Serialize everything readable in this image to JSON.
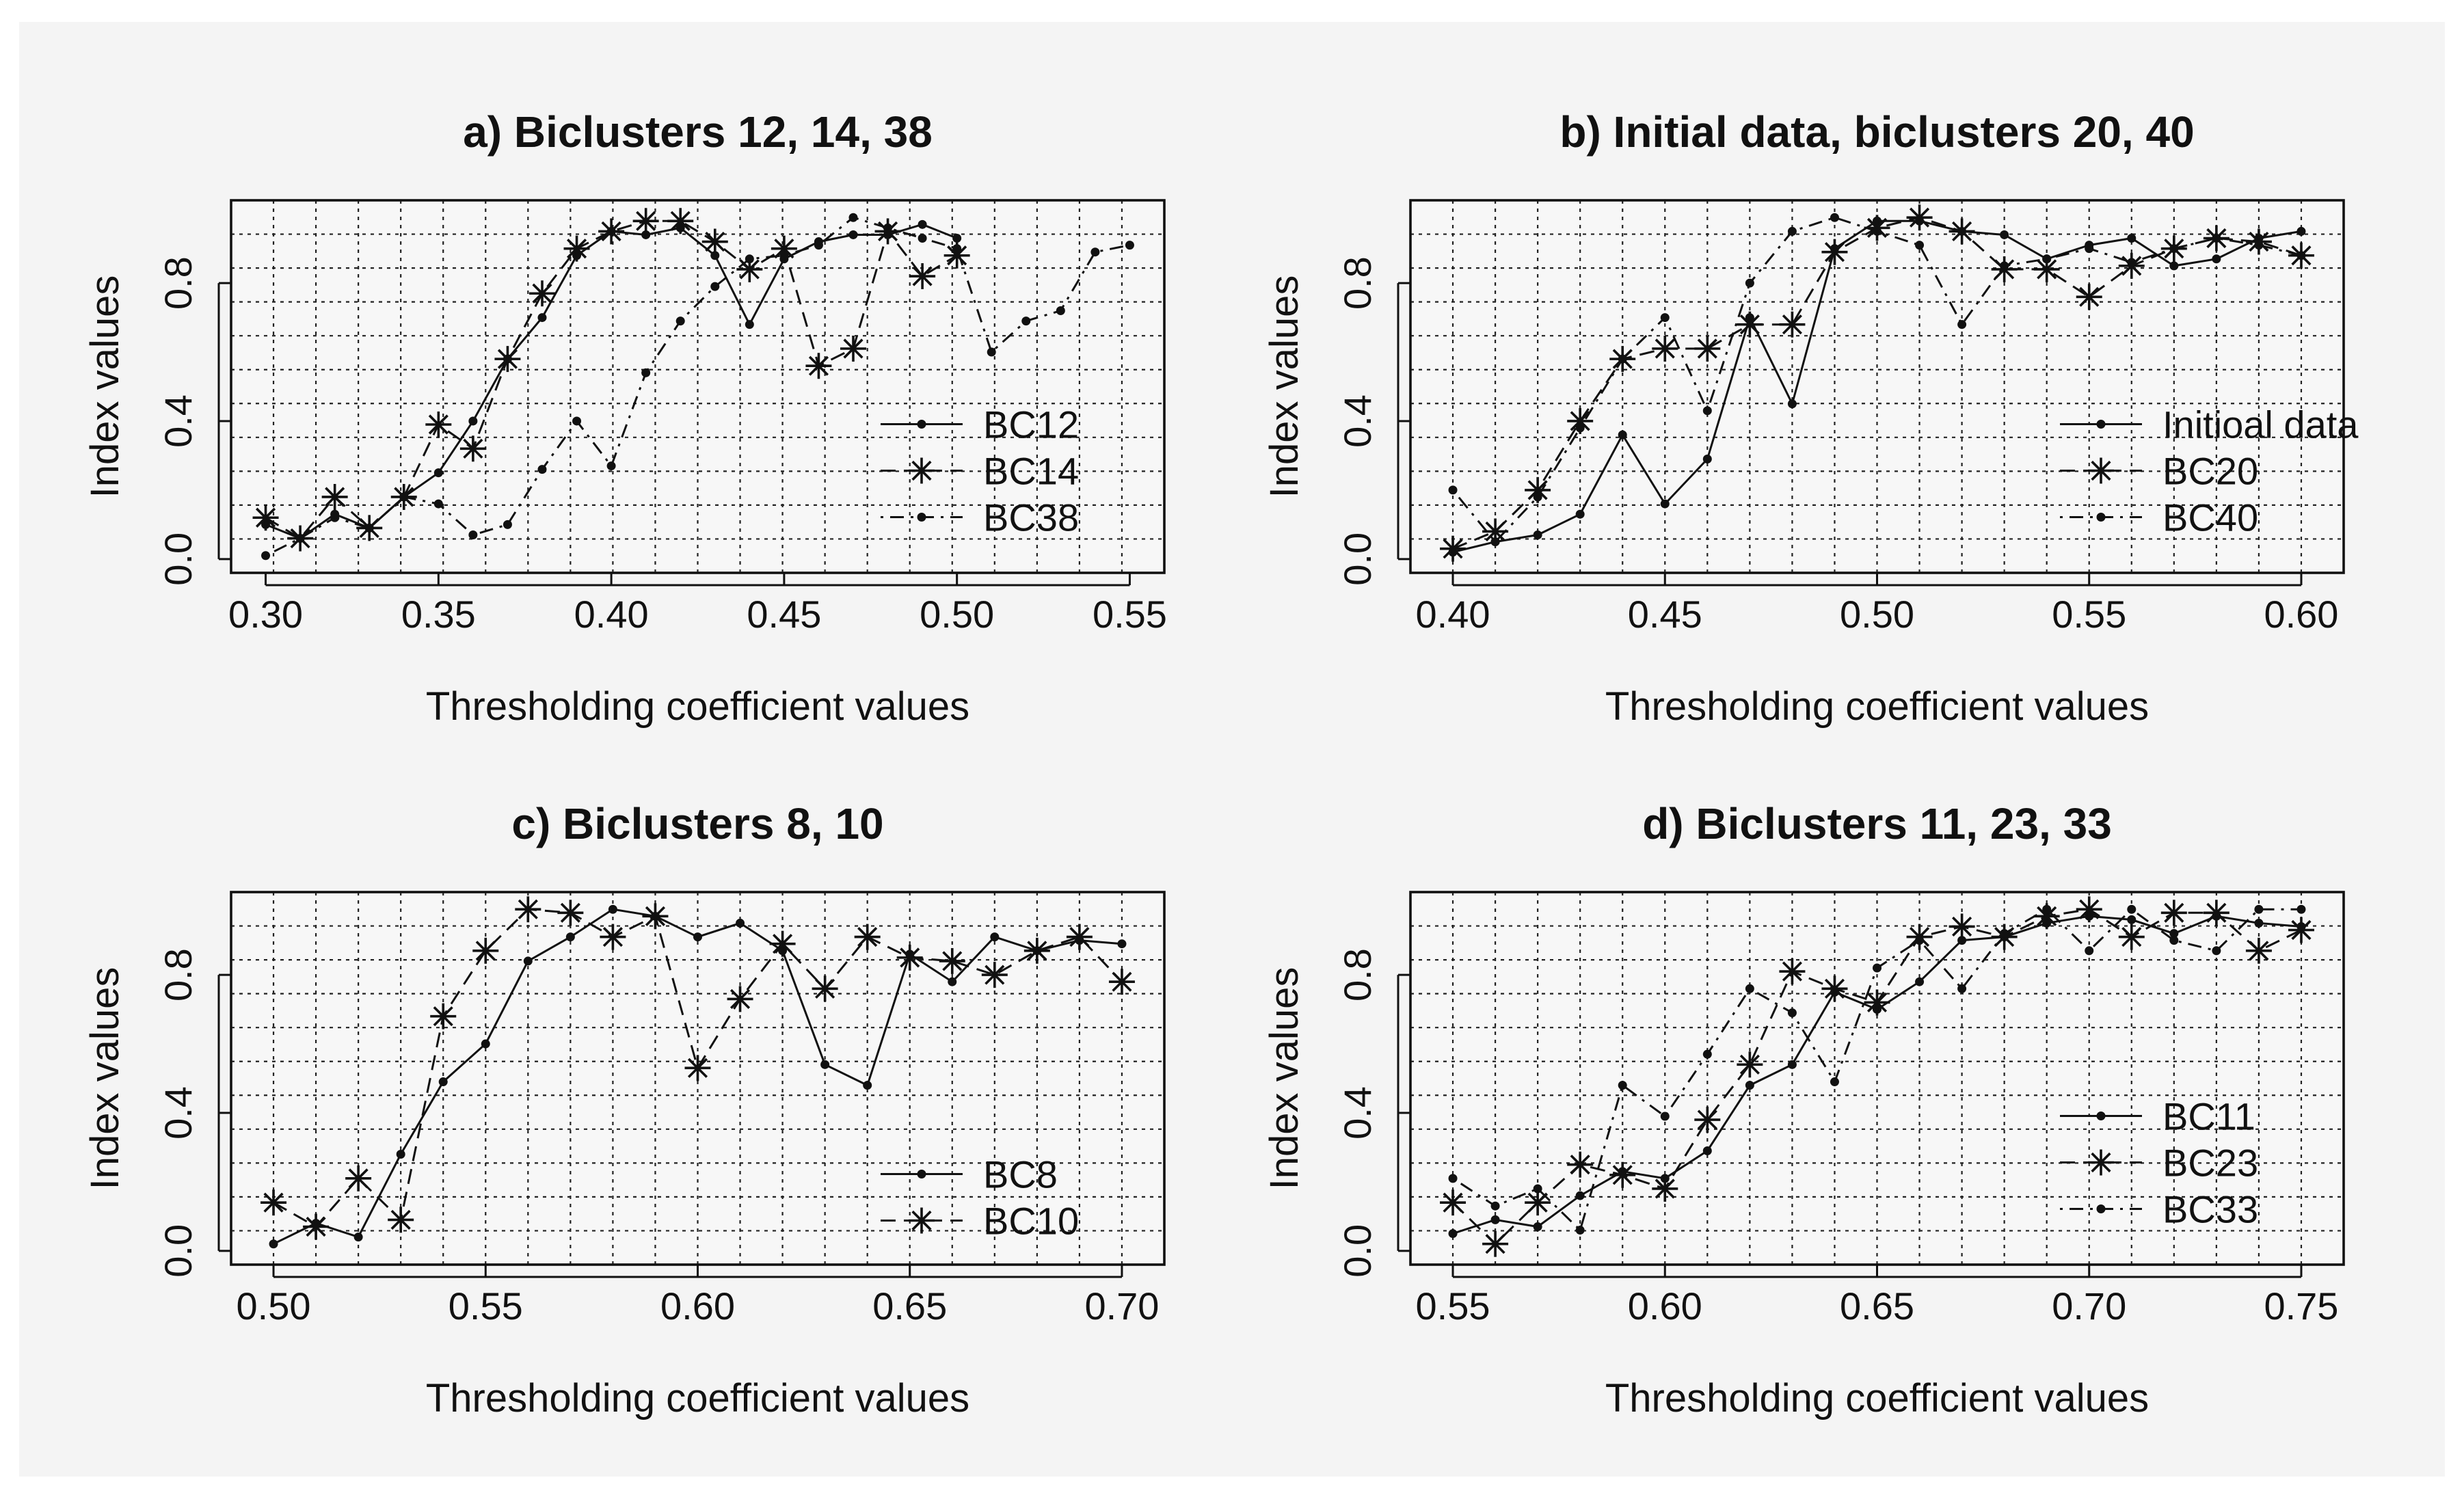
{
  "chart_data": [
    {
      "type": "line",
      "title": "a) Biclusters 12, 14, 38",
      "xlabel": "Thresholding coefficient values",
      "ylabel": "Index values",
      "xlim": [
        0.29,
        0.56
      ],
      "ylim": [
        -0.04,
        1.04
      ],
      "x_ticks": [
        "0.30",
        "0.35",
        "0.40",
        "0.45",
        "0.50",
        "0.55"
      ],
      "y_ticks": [
        "0.0",
        "0.4",
        "0.8"
      ],
      "grid": true,
      "legend_position": "right",
      "series": [
        {
          "name": "BC12",
          "marker": "dot",
          "line": "solid",
          "x": [
            0.3,
            0.31,
            0.32,
            0.33,
            0.34,
            0.35,
            0.36,
            0.37,
            0.38,
            0.39,
            0.4,
            0.41,
            0.42,
            0.43,
            0.44,
            0.45,
            0.46,
            0.47,
            0.48,
            0.49,
            0.5
          ],
          "y": [
            0.1,
            0.06,
            0.13,
            0.09,
            0.18,
            0.25,
            0.4,
            0.58,
            0.7,
            0.88,
            0.95,
            0.94,
            0.96,
            0.88,
            0.68,
            0.87,
            0.92,
            0.94,
            0.94,
            0.97,
            0.93
          ]
        },
        {
          "name": "BC14",
          "marker": "star",
          "line": "dashed",
          "x": [
            0.3,
            0.31,
            0.32,
            0.33,
            0.34,
            0.35,
            0.36,
            0.37,
            0.38,
            0.39,
            0.4,
            0.41,
            0.42,
            0.43,
            0.44,
            0.45,
            0.46,
            0.47,
            0.48,
            0.49,
            0.5
          ],
          "y": [
            0.12,
            0.06,
            0.18,
            0.09,
            0.18,
            0.39,
            0.32,
            0.58,
            0.77,
            0.9,
            0.95,
            0.98,
            0.98,
            0.92,
            0.84,
            0.9,
            0.56,
            0.61,
            0.95,
            0.82,
            0.88
          ]
        },
        {
          "name": "BC38",
          "marker": "dot",
          "line": "dotdash",
          "x": [
            0.3,
            0.31,
            0.32,
            0.33,
            0.34,
            0.35,
            0.36,
            0.37,
            0.38,
            0.39,
            0.4,
            0.41,
            0.42,
            0.43,
            0.44,
            0.45,
            0.46,
            0.47,
            0.48,
            0.49,
            0.5,
            0.51,
            0.52,
            0.53,
            0.54,
            0.55
          ],
          "y": [
            0.01,
            0.06,
            0.12,
            0.09,
            0.18,
            0.16,
            0.07,
            0.1,
            0.26,
            0.4,
            0.27,
            0.54,
            0.69,
            0.79,
            0.87,
            0.88,
            0.91,
            0.99,
            0.96,
            0.93,
            0.9,
            0.6,
            0.69,
            0.72,
            0.89,
            0.91
          ]
        }
      ]
    },
    {
      "type": "line",
      "title": "b) Initial data, biclusters 20, 40",
      "xlabel": "Thresholding coefficient values",
      "ylabel": "Index values",
      "xlim": [
        0.39,
        0.61
      ],
      "ylim": [
        -0.04,
        1.04
      ],
      "x_ticks": [
        "0.40",
        "0.45",
        "0.50",
        "0.55",
        "0.60"
      ],
      "y_ticks": [
        "0.0",
        "0.4",
        "0.8"
      ],
      "grid": true,
      "legend_position": "right",
      "series": [
        {
          "name": "Initioal data",
          "marker": "dot",
          "line": "solid",
          "x": [
            0.4,
            0.41,
            0.42,
            0.43,
            0.44,
            0.45,
            0.46,
            0.47,
            0.48,
            0.49,
            0.5,
            0.51,
            0.52,
            0.53,
            0.54,
            0.55,
            0.56,
            0.57,
            0.58,
            0.59,
            0.6
          ],
          "y": [
            0.02,
            0.05,
            0.07,
            0.13,
            0.36,
            0.16,
            0.29,
            0.7,
            0.45,
            0.9,
            0.98,
            0.98,
            0.95,
            0.94,
            0.87,
            0.91,
            0.93,
            0.85,
            0.87,
            0.93,
            0.95
          ]
        },
        {
          "name": "BC20",
          "marker": "star",
          "line": "dashed",
          "x": [
            0.4,
            0.41,
            0.42,
            0.43,
            0.44,
            0.45,
            0.46,
            0.47,
            0.48,
            0.49,
            0.5,
            0.51,
            0.52,
            0.53,
            0.54,
            0.55,
            0.56,
            0.57,
            0.58,
            0.59,
            0.6
          ],
          "y": [
            0.03,
            0.08,
            0.2,
            0.4,
            0.58,
            0.61,
            0.61,
            0.68,
            0.68,
            0.89,
            0.96,
            0.99,
            0.95,
            0.84,
            0.84,
            0.76,
            0.85,
            0.9,
            0.93,
            0.92,
            0.88
          ]
        },
        {
          "name": "BC40",
          "marker": "dot",
          "line": "dotdash",
          "x": [
            0.4,
            0.41,
            0.42,
            0.43,
            0.44,
            0.45,
            0.46,
            0.47,
            0.48,
            0.49,
            0.5,
            0.51,
            0.52,
            0.53,
            0.54,
            0.55,
            0.56,
            0.57,
            0.58,
            0.59,
            0.6
          ],
          "y": [
            0.2,
            0.05,
            0.18,
            0.38,
            0.58,
            0.7,
            0.43,
            0.8,
            0.95,
            0.99,
            0.95,
            0.91,
            0.68,
            0.85,
            0.87,
            0.9,
            0.86,
            0.9,
            0.93,
            0.91,
            0.88
          ]
        }
      ]
    },
    {
      "type": "line",
      "title": "c) Biclusters 8, 10",
      "xlabel": "Thresholding coefficient values",
      "ylabel": "Index values",
      "xlim": [
        0.49,
        0.71
      ],
      "ylim": [
        -0.04,
        1.04
      ],
      "x_ticks": [
        "0.50",
        "0.55",
        "0.60",
        "0.65",
        "0.70"
      ],
      "y_ticks": [
        "0.0",
        "0.4",
        "0.8"
      ],
      "grid": true,
      "legend_position": "right",
      "series": [
        {
          "name": "BC8",
          "marker": "dot",
          "line": "solid",
          "x": [
            0.5,
            0.51,
            0.52,
            0.53,
            0.54,
            0.55,
            0.56,
            0.57,
            0.58,
            0.59,
            0.6,
            0.61,
            0.62,
            0.63,
            0.64,
            0.65,
            0.66,
            0.67,
            0.68,
            0.69,
            0.7
          ],
          "y": [
            0.02,
            0.08,
            0.04,
            0.28,
            0.49,
            0.6,
            0.84,
            0.91,
            0.99,
            0.97,
            0.91,
            0.95,
            0.87,
            0.54,
            0.48,
            0.86,
            0.78,
            0.91,
            0.87,
            0.9,
            0.89
          ]
        },
        {
          "name": "BC10",
          "marker": "star",
          "line": "dashed",
          "x": [
            0.5,
            0.51,
            0.52,
            0.53,
            0.54,
            0.55,
            0.56,
            0.57,
            0.58,
            0.59,
            0.6,
            0.61,
            0.62,
            0.63,
            0.64,
            0.65,
            0.66,
            0.67,
            0.68,
            0.69,
            0.7
          ],
          "y": [
            0.14,
            0.07,
            0.21,
            0.09,
            0.68,
            0.87,
            0.99,
            0.98,
            0.91,
            0.97,
            0.53,
            0.73,
            0.89,
            0.76,
            0.91,
            0.85,
            0.84,
            0.8,
            0.87,
            0.91,
            0.78
          ]
        }
      ]
    },
    {
      "type": "line",
      "title": "d) Biclusters 11, 23, 33",
      "xlabel": "Thresholding coefficient values",
      "ylabel": "Index values",
      "xlim": [
        0.54,
        0.76
      ],
      "ylim": [
        -0.04,
        1.04
      ],
      "x_ticks": [
        "0.55",
        "0.60",
        "0.65",
        "0.70",
        "0.75"
      ],
      "y_ticks": [
        "0.0",
        "0.4",
        "0.8"
      ],
      "grid": true,
      "legend_position": "right",
      "series": [
        {
          "name": "BC11",
          "marker": "dot",
          "line": "solid",
          "x": [
            0.55,
            0.56,
            0.57,
            0.58,
            0.59,
            0.6,
            0.61,
            0.62,
            0.63,
            0.64,
            0.65,
            0.66,
            0.67,
            0.68,
            0.69,
            0.7,
            0.71,
            0.72,
            0.73,
            0.74,
            0.75
          ],
          "y": [
            0.05,
            0.09,
            0.07,
            0.16,
            0.23,
            0.21,
            0.29,
            0.48,
            0.54,
            0.75,
            0.7,
            0.78,
            0.9,
            0.91,
            0.95,
            0.97,
            0.96,
            0.92,
            0.97,
            0.95,
            0.94
          ]
        },
        {
          "name": "BC23",
          "marker": "star",
          "line": "dashed",
          "x": [
            0.55,
            0.56,
            0.57,
            0.58,
            0.59,
            0.6,
            0.61,
            0.62,
            0.63,
            0.64,
            0.65,
            0.66,
            0.67,
            0.68,
            0.69,
            0.7,
            0.71,
            0.72,
            0.73,
            0.74,
            0.75
          ],
          "y": [
            0.14,
            0.02,
            0.14,
            0.25,
            0.22,
            0.18,
            0.38,
            0.54,
            0.81,
            0.76,
            0.72,
            0.91,
            0.94,
            0.91,
            0.97,
            0.99,
            0.91,
            0.98,
            0.98,
            0.87,
            0.93
          ]
        },
        {
          "name": "BC33",
          "marker": "dot",
          "line": "dotdash",
          "x": [
            0.55,
            0.56,
            0.57,
            0.58,
            0.59,
            0.6,
            0.61,
            0.62,
            0.63,
            0.64,
            0.65,
            0.66,
            0.67,
            0.68,
            0.69,
            0.7,
            0.71,
            0.72,
            0.73,
            0.74,
            0.75
          ],
          "y": [
            0.21,
            0.13,
            0.18,
            0.06,
            0.48,
            0.39,
            0.57,
            0.76,
            0.69,
            0.49,
            0.82,
            0.9,
            0.76,
            0.92,
            0.99,
            0.87,
            0.99,
            0.9,
            0.87,
            0.99,
            0.99
          ]
        }
      ]
    }
  ]
}
